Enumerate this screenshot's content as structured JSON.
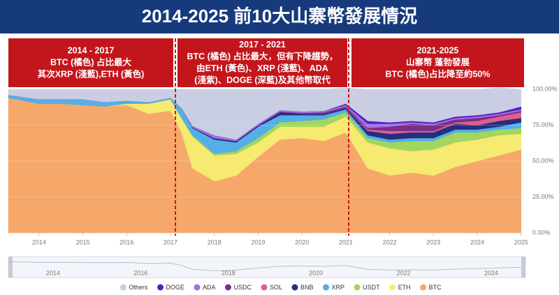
{
  "chart_data": {
    "type": "stacked_area",
    "title": "2014-2025 前10大山寨幣發展情況",
    "annotations": [
      [
        "2014 - 2017",
        "BTC (橘色) 占比最大",
        "其次XRP (淺藍),ETH (黃色)"
      ],
      [
        "2017 - 2021",
        "BTC (橘色) 占比最大，但有下降趨勢，",
        "由ETH (黃色)、XRP (淺藍)、ADA",
        "(淺紫)、DOGE (深藍)及其他幣取代"
      ],
      [
        "2021-2025",
        "山寨幣 蓬勃發展",
        "BTC (橘色)占比降至約50%"
      ]
    ],
    "x": [
      2013.3,
      2014.0,
      2014.5,
      2015.0,
      2015.5,
      2016.0,
      2016.5,
      2017.0,
      2017.25,
      2017.5,
      2018.0,
      2018.5,
      2019.0,
      2019.5,
      2020.0,
      2020.5,
      2021.0,
      2021.5,
      2022.0,
      2022.5,
      2023.0,
      2023.5,
      2024.0,
      2024.5,
      2025.0
    ],
    "xlim": [
      2013.3,
      2025.1
    ],
    "xticks": [
      2014,
      2015,
      2016,
      2017,
      2018,
      2019,
      2020,
      2021,
      2022,
      2023,
      2024,
      2025
    ],
    "ylim": [
      0,
      100
    ],
    "yticks": [
      {
        "value": 0,
        "label": "0.00%"
      },
      {
        "value": 25,
        "label": "25.00%"
      },
      {
        "value": 50,
        "label": "50.00%"
      },
      {
        "value": 75,
        "label": "75.00%"
      },
      {
        "value": 100,
        "label": "100.00%"
      }
    ],
    "navigator_ticks": [
      2014,
      2016,
      2018,
      2020,
      2022,
      2024
    ],
    "series": [
      {
        "name": "Others",
        "color": "#c9cee3",
        "values": [
          4,
          7,
          7,
          7,
          9,
          8,
          9,
          6,
          13,
          25.5,
          32,
          35,
          24,
          14.5,
          15.5,
          15,
          11,
          22,
          23,
          22,
          23,
          19,
          18,
          17,
          12
        ]
      },
      {
        "name": "DOGE",
        "color": "#5a1ec4",
        "values": [
          0,
          0,
          0,
          0,
          0,
          0,
          0,
          0,
          0,
          0,
          0,
          0,
          0,
          0,
          0,
          0,
          1,
          2,
          1,
          1,
          1,
          1,
          1,
          1,
          2
        ]
      },
      {
        "name": "ADA",
        "color": "#a070e6",
        "values": [
          0,
          0,
          0,
          0,
          0,
          0,
          0,
          0,
          0,
          1,
          2,
          1,
          1,
          1,
          1,
          1,
          1,
          3,
          2,
          1,
          1,
          1,
          1,
          1,
          1
        ]
      },
      {
        "name": "USDC",
        "color": "#7a2f86",
        "values": [
          0,
          0,
          0,
          0,
          0,
          0,
          0,
          0,
          0,
          0,
          0,
          0,
          0,
          0.5,
          0.5,
          1,
          1,
          1,
          3,
          5,
          4,
          2,
          2,
          1,
          1
        ]
      },
      {
        "name": "SOL",
        "color": "#e35d8d",
        "values": [
          0,
          0,
          0,
          0,
          0,
          0,
          0,
          0,
          0,
          0,
          0,
          0,
          0,
          0,
          0,
          0,
          0,
          1,
          2,
          1,
          1,
          1,
          3,
          3,
          4
        ]
      },
      {
        "name": "BNB",
        "color": "#22307e",
        "values": [
          0,
          0,
          0,
          0,
          0,
          0,
          0,
          0,
          0,
          0.5,
          1,
          1,
          1,
          2,
          1,
          1,
          1,
          3,
          4,
          4,
          4,
          4,
          3,
          4,
          3
        ]
      },
      {
        "name": "XRP",
        "color": "#55aee6",
        "values": [
          2,
          3,
          3,
          4,
          3,
          2,
          1,
          1,
          7,
          5,
          10,
          6,
          8,
          5,
          4,
          3,
          2,
          2,
          2,
          2,
          2,
          2,
          2,
          2,
          4
        ]
      },
      {
        "name": "USDT",
        "color": "#a2d65e",
        "values": [
          0,
          0,
          0,
          0,
          0,
          0,
          0,
          0,
          0,
          1,
          1,
          2,
          3,
          3,
          4,
          5,
          3,
          3,
          4,
          7,
          6,
          7,
          5,
          4,
          4
        ]
      },
      {
        "name": "ETH",
        "color": "#f6ea70",
        "values": [
          0,
          0,
          0,
          0,
          0,
          1,
          7,
          8,
          10,
          22,
          18,
          15,
          10,
          9,
          8,
          10,
          11,
          18,
          19,
          15,
          18,
          17,
          15,
          14,
          11
        ]
      },
      {
        "name": "BTC",
        "color": "#f5a86a",
        "values": [
          94,
          90,
          90,
          89,
          88,
          89,
          83,
          85,
          70,
          45,
          36,
          40,
          53,
          65,
          66,
          64,
          70,
          45,
          40,
          42,
          40,
          46,
          50,
          54,
          58
        ]
      }
    ]
  }
}
